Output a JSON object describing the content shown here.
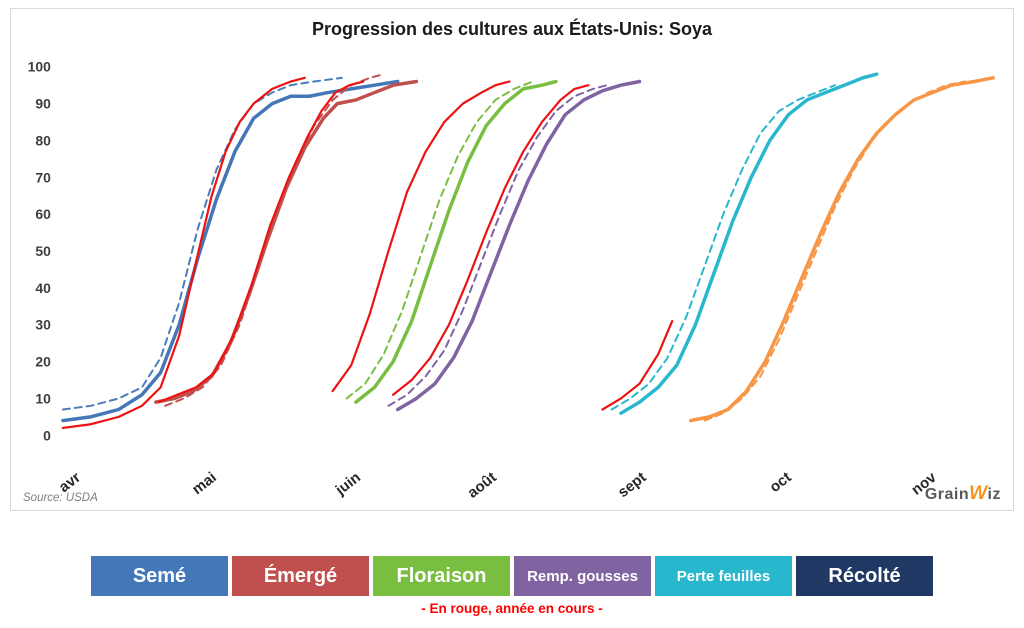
{
  "title": "Progression des cultures aux États-Unis: Soya",
  "source": "Source: USDA",
  "logo": {
    "part1": "Grain",
    "part2": "W",
    "part3": "iz"
  },
  "note": "- En rouge, année en cours -",
  "legend": [
    {
      "label": "Semé",
      "color": "#4477B8"
    },
    {
      "label": "Émergé",
      "color": "#C0504D"
    },
    {
      "label": "Floraison",
      "color": "#79BE41"
    },
    {
      "label": "Remp. gousses",
      "color": "#8064A2"
    },
    {
      "label": "Perte feuilles",
      "color": "#28B7CD"
    },
    {
      "label": "Récolté",
      "color": "#1F3864"
    }
  ],
  "chart_data": {
    "type": "line",
    "title": "Progression des cultures aux États-Unis: Soya",
    "xlabel": "",
    "ylabel": "",
    "ylim": [
      0,
      100
    ],
    "yticks": [
      0,
      10,
      20,
      30,
      40,
      50,
      60,
      70,
      80,
      90,
      100
    ],
    "grid": false,
    "legend_position": "bottom",
    "x_axis_labels": [
      {
        "label": "avr",
        "pos": 0.5
      },
      {
        "label": "mai",
        "pos": 15.1
      },
      {
        "label": "juin",
        "pos": 30.6
      },
      {
        "label": "août",
        "pos": 45.2
      },
      {
        "label": "sept",
        "pos": 61.3
      },
      {
        "label": "oct",
        "pos": 76.9
      },
      {
        "label": "nov",
        "pos": 92.5
      }
    ],
    "x_unit": "percent of x-axis from avr to end of nov",
    "note": "red lines = current year (année en cours)",
    "series": [
      {
        "id": "seme-dashed",
        "stage": "Semé",
        "style": "dashed",
        "color": "#4A7EBB",
        "width": 2,
        "dash": true,
        "points": [
          [
            0,
            7
          ],
          [
            3,
            8
          ],
          [
            6,
            10
          ],
          [
            8.5,
            13
          ],
          [
            10.5,
            21
          ],
          [
            12.5,
            36
          ],
          [
            14.5,
            56
          ],
          [
            16.5,
            72
          ],
          [
            18.5,
            83
          ],
          [
            20.5,
            90
          ],
          [
            22.5,
            93
          ],
          [
            24.5,
            95
          ],
          [
            27,
            96
          ],
          [
            30,
            97
          ]
        ]
      },
      {
        "id": "seme-solid",
        "stage": "Semé",
        "style": "solid",
        "color": "#4477B8",
        "width": 3.5,
        "dash": false,
        "points": [
          [
            0,
            4
          ],
          [
            3,
            5
          ],
          [
            6,
            7
          ],
          [
            8.5,
            11
          ],
          [
            10.5,
            17
          ],
          [
            12.5,
            30
          ],
          [
            14.5,
            48
          ],
          [
            16.5,
            64
          ],
          [
            18.5,
            77
          ],
          [
            20.5,
            86
          ],
          [
            22.5,
            90
          ],
          [
            24.5,
            92
          ],
          [
            26.5,
            92
          ],
          [
            28.5,
            93
          ],
          [
            31,
            94
          ],
          [
            33.5,
            95
          ],
          [
            36,
            96
          ]
        ]
      },
      {
        "id": "seme-current",
        "stage": "Semé",
        "style": "current-year",
        "color": "#EE1111",
        "width": 2.2,
        "dash": false,
        "points": [
          [
            0,
            2
          ],
          [
            3,
            3
          ],
          [
            6,
            5
          ],
          [
            8.5,
            8
          ],
          [
            10.5,
            13
          ],
          [
            12.5,
            27
          ],
          [
            14.5,
            49
          ],
          [
            16,
            65
          ],
          [
            17.5,
            77
          ],
          [
            19,
            85
          ],
          [
            20.5,
            90
          ],
          [
            22.5,
            94
          ],
          [
            24.5,
            96
          ],
          [
            26,
            97
          ]
        ]
      },
      {
        "id": "emerge-dashed",
        "stage": "Émergé",
        "style": "dashed",
        "color": "#C0504D",
        "width": 2,
        "dash": true,
        "points": [
          [
            11,
            8
          ],
          [
            13,
            10
          ],
          [
            15,
            13
          ],
          [
            17,
            19
          ],
          [
            19,
            30
          ],
          [
            21,
            45
          ],
          [
            23,
            61
          ],
          [
            25,
            74
          ],
          [
            27,
            84
          ],
          [
            29,
            91
          ],
          [
            31,
            95
          ],
          [
            33,
            97
          ],
          [
            34.5,
            98
          ]
        ]
      },
      {
        "id": "emerge-solid",
        "stage": "Émergé",
        "style": "solid",
        "color": "#C0504D",
        "width": 3.5,
        "dash": false,
        "points": [
          [
            10,
            9
          ],
          [
            12,
            10
          ],
          [
            14,
            12
          ],
          [
            16,
            16
          ],
          [
            18,
            25
          ],
          [
            20,
            38
          ],
          [
            22,
            53
          ],
          [
            24,
            67
          ],
          [
            26,
            78
          ],
          [
            28,
            86
          ],
          [
            29.5,
            90
          ],
          [
            31.5,
            91
          ],
          [
            33.5,
            93
          ],
          [
            35.5,
            95
          ],
          [
            38,
            96
          ]
        ]
      },
      {
        "id": "emerge-current",
        "stage": "Émergé",
        "style": "current-year",
        "color": "#EE1111",
        "width": 2.2,
        "dash": false,
        "points": [
          [
            10.3,
            9
          ],
          [
            12.3,
            11
          ],
          [
            14.3,
            13
          ],
          [
            16.3,
            17
          ],
          [
            18.3,
            27
          ],
          [
            20.3,
            41
          ],
          [
            22.3,
            57
          ],
          [
            24.3,
            70
          ],
          [
            26.3,
            81
          ],
          [
            27.8,
            88
          ],
          [
            29.3,
            93
          ],
          [
            30.8,
            95
          ],
          [
            32.3,
            96
          ]
        ]
      },
      {
        "id": "floraison-dashed",
        "stage": "Floraison",
        "style": "dashed",
        "color": "#79BE41",
        "width": 2,
        "dash": true,
        "points": [
          [
            30.5,
            10
          ],
          [
            32.5,
            14
          ],
          [
            34.5,
            22
          ],
          [
            36.5,
            34
          ],
          [
            38.5,
            49
          ],
          [
            40.5,
            64
          ],
          [
            42.5,
            76
          ],
          [
            44.5,
            85
          ],
          [
            46.5,
            91
          ],
          [
            48.5,
            94
          ],
          [
            50.5,
            96
          ]
        ]
      },
      {
        "id": "floraison-solid",
        "stage": "Floraison",
        "style": "solid",
        "color": "#79BE41",
        "width": 3.5,
        "dash": false,
        "points": [
          [
            31.5,
            9
          ],
          [
            33.5,
            13
          ],
          [
            35.5,
            20
          ],
          [
            37.5,
            31
          ],
          [
            39.5,
            46
          ],
          [
            41.5,
            61
          ],
          [
            43.5,
            74
          ],
          [
            45.5,
            84
          ],
          [
            47.5,
            90
          ],
          [
            49.5,
            94
          ],
          [
            51.5,
            95
          ],
          [
            53,
            96
          ]
        ]
      },
      {
        "id": "floraison-current",
        "stage": "Floraison",
        "style": "current-year",
        "color": "#EE1111",
        "width": 2.2,
        "dash": false,
        "points": [
          [
            29,
            12
          ],
          [
            31,
            19
          ],
          [
            33,
            33
          ],
          [
            35,
            50
          ],
          [
            37,
            66
          ],
          [
            39,
            77
          ],
          [
            41,
            85
          ],
          [
            43,
            90
          ],
          [
            45,
            93
          ],
          [
            46.5,
            95
          ],
          [
            48,
            96
          ]
        ]
      },
      {
        "id": "gousses-dashed",
        "stage": "Remp. gousses",
        "style": "dashed",
        "color": "#8064A2",
        "width": 2,
        "dash": true,
        "points": [
          [
            35,
            8
          ],
          [
            37,
            11
          ],
          [
            39,
            16
          ],
          [
            41,
            23
          ],
          [
            43,
            34
          ],
          [
            45,
            47
          ],
          [
            47,
            60
          ],
          [
            49,
            72
          ],
          [
            51,
            81
          ],
          [
            53,
            88
          ],
          [
            55,
            92
          ],
          [
            57,
            94
          ],
          [
            58.5,
            95
          ]
        ]
      },
      {
        "id": "gousses-solid",
        "stage": "Remp. gousses",
        "style": "solid",
        "color": "#8064A2",
        "width": 3.5,
        "dash": false,
        "points": [
          [
            36,
            7
          ],
          [
            38,
            10
          ],
          [
            40,
            14
          ],
          [
            42,
            21
          ],
          [
            44,
            31
          ],
          [
            46,
            44
          ],
          [
            48,
            57
          ],
          [
            50,
            69
          ],
          [
            52,
            79
          ],
          [
            54,
            87
          ],
          [
            56,
            91
          ],
          [
            58,
            93.5
          ],
          [
            60,
            95
          ],
          [
            62,
            96
          ]
        ]
      },
      {
        "id": "gousses-current",
        "stage": "Remp. gousses",
        "style": "current-year",
        "color": "#EE1111",
        "width": 2.2,
        "dash": false,
        "points": [
          [
            35.5,
            11
          ],
          [
            37.5,
            15
          ],
          [
            39.5,
            21
          ],
          [
            41.5,
            30
          ],
          [
            43.5,
            42
          ],
          [
            45.5,
            55
          ],
          [
            47.5,
            67
          ],
          [
            49.5,
            77
          ],
          [
            51.5,
            85
          ],
          [
            53.5,
            91
          ],
          [
            55,
            94
          ],
          [
            56.5,
            95
          ]
        ]
      },
      {
        "id": "perte-dashed",
        "stage": "Perte feuilles",
        "style": "dashed",
        "color": "#28B7CD",
        "width": 2,
        "dash": true,
        "points": [
          [
            59,
            7
          ],
          [
            61,
            10
          ],
          [
            63,
            14
          ],
          [
            65,
            21
          ],
          [
            67,
            32
          ],
          [
            69,
            46
          ],
          [
            71,
            60
          ],
          [
            73,
            72
          ],
          [
            75,
            82
          ],
          [
            77,
            88
          ],
          [
            79,
            91
          ],
          [
            81,
            93
          ],
          [
            83,
            95
          ]
        ]
      },
      {
        "id": "perte-solid",
        "stage": "Perte feuilles",
        "style": "solid",
        "color": "#28B7CD",
        "width": 3.5,
        "dash": false,
        "points": [
          [
            60,
            6
          ],
          [
            62,
            9
          ],
          [
            64,
            13
          ],
          [
            66,
            19
          ],
          [
            68,
            30
          ],
          [
            70,
            44
          ],
          [
            72,
            58
          ],
          [
            74,
            70
          ],
          [
            76,
            80
          ],
          [
            78,
            87
          ],
          [
            80,
            91
          ],
          [
            82,
            93
          ],
          [
            84,
            95
          ],
          [
            86,
            97
          ],
          [
            87.5,
            98
          ]
        ]
      },
      {
        "id": "perte-current",
        "stage": "Perte feuilles",
        "style": "current-year",
        "color": "#EE1111",
        "width": 2.2,
        "dash": false,
        "points": [
          [
            58,
            7
          ],
          [
            60,
            10
          ],
          [
            62,
            14
          ],
          [
            64,
            22
          ],
          [
            65.5,
            31
          ]
        ]
      },
      {
        "id": "recolte-dashed",
        "stage": "Récolté",
        "style": "dashed",
        "color": "#F79646",
        "width": 2,
        "dash": true,
        "points": [
          [
            69,
            4
          ],
          [
            71,
            6
          ],
          [
            73,
            10
          ],
          [
            75,
            16
          ],
          [
            77,
            26
          ],
          [
            79,
            38
          ],
          [
            81,
            50
          ],
          [
            83,
            62
          ],
          [
            85,
            72
          ],
          [
            87,
            80
          ],
          [
            89,
            86
          ],
          [
            91,
            90
          ],
          [
            93,
            93
          ],
          [
            95,
            95
          ],
          [
            97,
            96
          ]
        ]
      },
      {
        "id": "recolte-solid",
        "stage": "Récolté",
        "style": "solid",
        "color": "#F79646",
        "width": 3.5,
        "dash": false,
        "points": [
          [
            67.5,
            4
          ],
          [
            69.5,
            5
          ],
          [
            71.5,
            7
          ],
          [
            73.5,
            12
          ],
          [
            75.5,
            20
          ],
          [
            77.5,
            31
          ],
          [
            79.5,
            43
          ],
          [
            81.5,
            55
          ],
          [
            83.5,
            66
          ],
          [
            85.5,
            75
          ],
          [
            87.5,
            82
          ],
          [
            89.5,
            87
          ],
          [
            91.5,
            91
          ],
          [
            93.5,
            93
          ],
          [
            95.5,
            95
          ],
          [
            98,
            96
          ],
          [
            100,
            97
          ]
        ]
      }
    ]
  }
}
